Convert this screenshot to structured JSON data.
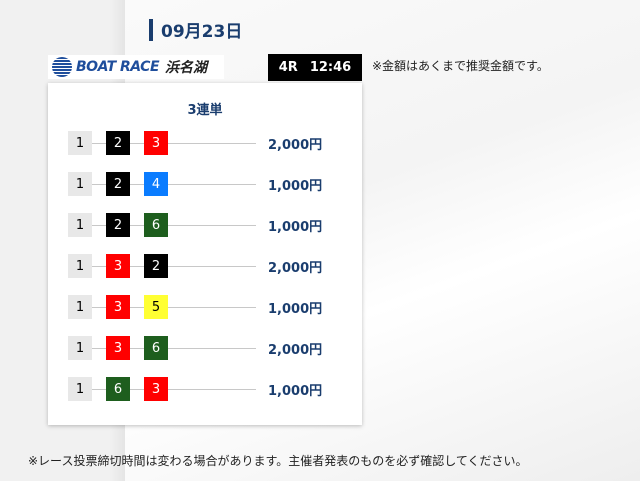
{
  "date": "09月23日",
  "logo": {
    "brand": "BOAT RACE",
    "venue": "浜名湖"
  },
  "race": {
    "number": "4R",
    "time": "12:46"
  },
  "note_amount": "※金額はあくまで推奨金額です。",
  "card": {
    "title": "3連単",
    "rows": [
      {
        "boats": [
          "1",
          "2",
          "3"
        ],
        "amount": "2,000円"
      },
      {
        "boats": [
          "1",
          "2",
          "4"
        ],
        "amount": "1,000円"
      },
      {
        "boats": [
          "1",
          "2",
          "6"
        ],
        "amount": "1,000円"
      },
      {
        "boats": [
          "1",
          "3",
          "2"
        ],
        "amount": "2,000円"
      },
      {
        "boats": [
          "1",
          "3",
          "5"
        ],
        "amount": "1,000円"
      },
      {
        "boats": [
          "1",
          "3",
          "6"
        ],
        "amount": "2,000円"
      },
      {
        "boats": [
          "1",
          "6",
          "3"
        ],
        "amount": "1,000円"
      }
    ]
  },
  "boat_colors": {
    "1": {
      "bg": "#e8e8e8",
      "fg": "#000000"
    },
    "2": {
      "bg": "#000000",
      "fg": "#ffffff"
    },
    "3": {
      "bg": "#ff0000",
      "fg": "#ffffff"
    },
    "4": {
      "bg": "#0a7cff",
      "fg": "#ffffff"
    },
    "5": {
      "bg": "#ffff33",
      "fg": "#000000"
    },
    "6": {
      "bg": "#1e5e1e",
      "fg": "#ffffff"
    }
  },
  "note_deadline": "※レース投票締切時間は変わる場合があります。主催者発表のものを必ず確認してください。"
}
